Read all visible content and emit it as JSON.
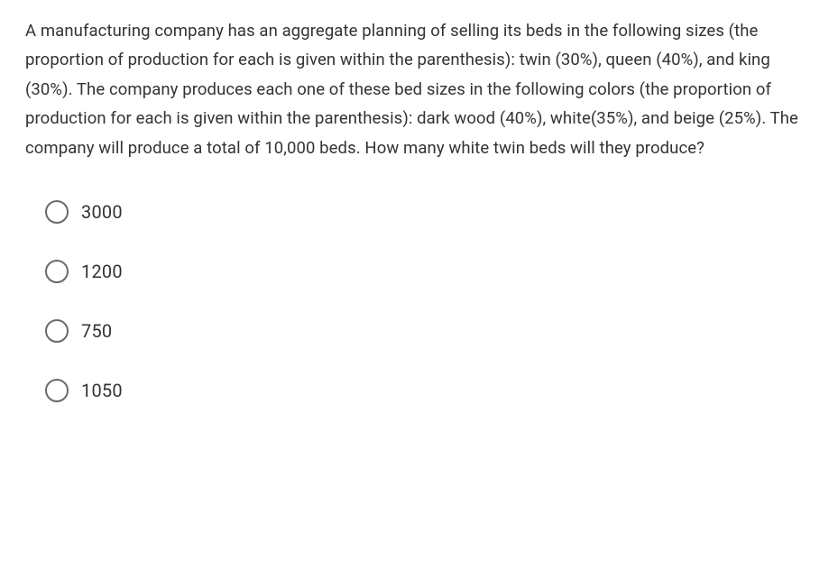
{
  "question": {
    "text": "A manufacturing company has an aggregate planning of selling its beds in the following sizes (the proportion of production for each is given within the parenthesis): twin (30%), queen (40%), and king (30%). The company produces each one of these bed sizes in the following colors (the proportion of production for each is given within the parenthesis): dark wood (40%), white(35%), and beige (25%). The company will produce a total of 10,000 beds. How many white twin beds will they produce?"
  },
  "options": [
    {
      "label": "3000",
      "selected": false
    },
    {
      "label": "1200",
      "selected": false
    },
    {
      "label": "750",
      "selected": false
    },
    {
      "label": "1050",
      "selected": false
    }
  ],
  "styling": {
    "background_color": "#ffffff",
    "text_color": "#333333",
    "radio_border_color": "#6a6a6a",
    "question_fontsize": 18.5,
    "option_fontsize": 20,
    "line_height": 1.75
  }
}
